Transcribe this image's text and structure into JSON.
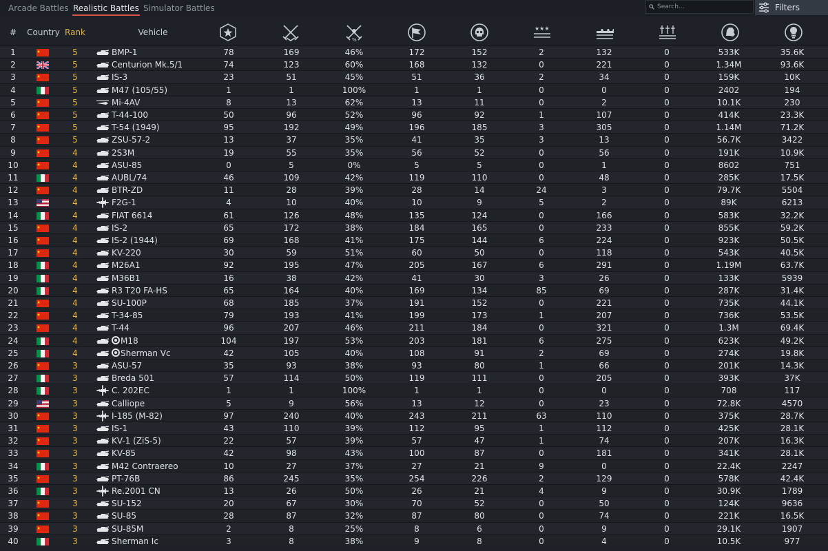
{
  "tabs": [
    {
      "label": "Arcade Battles"
    },
    {
      "label": "Realistic Battles",
      "active": true
    },
    {
      "label": "Simulator Battles"
    }
  ],
  "search": {
    "placeholder": "Search..."
  },
  "filters": {
    "label": "Filters"
  },
  "columns": {
    "num": "#",
    "country": "Country",
    "rank": "Rank",
    "vehicle": "Vehicle",
    "stat_icons": [
      "battles-icon",
      "victories-icon",
      "win-rate-icon",
      "respawns-icon",
      "deaths-icon",
      "air-kills-icon",
      "ground-kills-icon",
      "naval-kills-icon",
      "silver-lions-icon",
      "research-points-icon"
    ]
  },
  "colors": {
    "background": "#1e2228",
    "rank": "#e3b547",
    "active_tab_underline": "#d8564a"
  },
  "rows": [
    {
      "num": "1",
      "flag": "china",
      "rank": "5",
      "type": "tank",
      "name": "BMP-1",
      "stats": [
        "78",
        "169",
        "46%",
        "172",
        "152",
        "2",
        "132",
        "0",
        "533K",
        "35.6K"
      ]
    },
    {
      "num": "2",
      "flag": "uk",
      "rank": "5",
      "type": "tank",
      "name": "Centurion Mk.5/1",
      "stats": [
        "74",
        "123",
        "60%",
        "168",
        "132",
        "0",
        "221",
        "0",
        "1.34M",
        "93.6K"
      ]
    },
    {
      "num": "3",
      "flag": "china",
      "rank": "5",
      "type": "tank",
      "name": "IS-3",
      "stats": [
        "23",
        "51",
        "45%",
        "51",
        "36",
        "2",
        "34",
        "0",
        "159K",
        "10K"
      ]
    },
    {
      "num": "4",
      "flag": "italy",
      "rank": "5",
      "type": "tank",
      "name": "M47 (105/55)",
      "stats": [
        "1",
        "1",
        "100%",
        "1",
        "1",
        "0",
        "0",
        "0",
        "2402",
        "194"
      ]
    },
    {
      "num": "5",
      "flag": "china",
      "rank": "5",
      "type": "heli",
      "name": "Mi-4AV",
      "stats": [
        "8",
        "13",
        "62%",
        "13",
        "11",
        "0",
        "2",
        "0",
        "10.1K",
        "230"
      ]
    },
    {
      "num": "6",
      "flag": "china",
      "rank": "5",
      "type": "tank",
      "name": "T-44-100",
      "stats": [
        "50",
        "96",
        "52%",
        "96",
        "92",
        "1",
        "107",
        "0",
        "414K",
        "23.3K"
      ]
    },
    {
      "num": "7",
      "flag": "china",
      "rank": "5",
      "type": "tank",
      "name": "T-54 (1949)",
      "stats": [
        "95",
        "192",
        "49%",
        "196",
        "185",
        "3",
        "305",
        "0",
        "1.14M",
        "71.2K"
      ]
    },
    {
      "num": "8",
      "flag": "china",
      "rank": "5",
      "type": "tank",
      "name": "ZSU-57-2",
      "stats": [
        "13",
        "37",
        "35%",
        "41",
        "35",
        "3",
        "13",
        "0",
        "56.7K",
        "3422"
      ]
    },
    {
      "num": "9",
      "flag": "china",
      "rank": "4",
      "type": "tank",
      "name": "2S3M",
      "stats": [
        "19",
        "55",
        "35%",
        "56",
        "52",
        "0",
        "56",
        "0",
        "191K",
        "10.9K"
      ]
    },
    {
      "num": "10",
      "flag": "china",
      "rank": "4",
      "type": "tank",
      "name": "ASU-85",
      "stats": [
        "0",
        "5",
        "0%",
        "5",
        "5",
        "0",
        "1",
        "0",
        "8602",
        "751"
      ]
    },
    {
      "num": "11",
      "flag": "italy",
      "rank": "4",
      "type": "tank",
      "name": "AUBL/74",
      "stats": [
        "46",
        "109",
        "42%",
        "119",
        "110",
        "0",
        "48",
        "0",
        "285K",
        "17.5K"
      ]
    },
    {
      "num": "12",
      "flag": "china",
      "rank": "4",
      "type": "tank",
      "name": "BTR-ZD",
      "stats": [
        "11",
        "28",
        "39%",
        "28",
        "14",
        "24",
        "3",
        "0",
        "79.7K",
        "5504"
      ]
    },
    {
      "num": "13",
      "flag": "usa",
      "rank": "4",
      "type": "plane",
      "name": "F2G-1",
      "stats": [
        "4",
        "10",
        "40%",
        "10",
        "9",
        "5",
        "2",
        "0",
        "89K",
        "6213"
      ]
    },
    {
      "num": "14",
      "flag": "italy",
      "rank": "4",
      "type": "tank",
      "name": "FIAT 6614",
      "stats": [
        "61",
        "126",
        "48%",
        "135",
        "124",
        "0",
        "166",
        "0",
        "583K",
        "32.2K"
      ]
    },
    {
      "num": "15",
      "flag": "china",
      "rank": "4",
      "type": "tank",
      "name": "IS-2",
      "stats": [
        "65",
        "172",
        "38%",
        "184",
        "165",
        "0",
        "233",
        "0",
        "855K",
        "59.2K"
      ]
    },
    {
      "num": "16",
      "flag": "china",
      "rank": "4",
      "type": "tank",
      "name": "IS-2 (1944)",
      "stats": [
        "69",
        "168",
        "41%",
        "175",
        "144",
        "6",
        "224",
        "0",
        "923K",
        "50.5K"
      ]
    },
    {
      "num": "17",
      "flag": "china",
      "rank": "4",
      "type": "tank",
      "name": "KV-220",
      "stats": [
        "30",
        "59",
        "51%",
        "60",
        "50",
        "0",
        "118",
        "0",
        "543K",
        "40.5K"
      ]
    },
    {
      "num": "18",
      "flag": "italy",
      "rank": "4",
      "type": "tank",
      "name": "M26A1",
      "stats": [
        "92",
        "195",
        "47%",
        "205",
        "167",
        "6",
        "291",
        "0",
        "1.19M",
        "63.7K"
      ]
    },
    {
      "num": "19",
      "flag": "italy",
      "rank": "4",
      "type": "tank",
      "name": "M36B1",
      "stats": [
        "16",
        "38",
        "42%",
        "41",
        "30",
        "3",
        "26",
        "0",
        "133K",
        "5939"
      ]
    },
    {
      "num": "20",
      "flag": "italy",
      "rank": "4",
      "type": "tank",
      "name": "R3 T20 FA-HS",
      "stats": [
        "65",
        "164",
        "40%",
        "169",
        "134",
        "85",
        "69",
        "0",
        "287K",
        "31.4K"
      ]
    },
    {
      "num": "21",
      "flag": "china",
      "rank": "4",
      "type": "tank",
      "name": "SU-100P",
      "stats": [
        "68",
        "185",
        "37%",
        "191",
        "152",
        "0",
        "221",
        "0",
        "735K",
        "44.1K"
      ]
    },
    {
      "num": "22",
      "flag": "china",
      "rank": "4",
      "type": "tank",
      "name": "T-34-85",
      "stats": [
        "79",
        "193",
        "41%",
        "199",
        "173",
        "1",
        "207",
        "0",
        "736K",
        "53.5K"
      ]
    },
    {
      "num": "23",
      "flag": "china",
      "rank": "4",
      "type": "tank",
      "name": "T-44",
      "stats": [
        "96",
        "207",
        "46%",
        "211",
        "184",
        "0",
        "321",
        "0",
        "1.3M",
        "69.4K"
      ]
    },
    {
      "num": "24",
      "flag": "italy",
      "rank": "4",
      "type": "tank",
      "badge": true,
      "name": "M18",
      "stats": [
        "104",
        "197",
        "53%",
        "203",
        "181",
        "6",
        "275",
        "0",
        "623K",
        "49.2K"
      ]
    },
    {
      "num": "25",
      "flag": "italy",
      "rank": "4",
      "type": "tank",
      "badge": true,
      "name": "Sherman Vc",
      "stats": [
        "42",
        "105",
        "40%",
        "108",
        "91",
        "2",
        "69",
        "0",
        "274K",
        "19.8K"
      ]
    },
    {
      "num": "26",
      "flag": "china",
      "rank": "3",
      "type": "tank",
      "name": "ASU-57",
      "stats": [
        "35",
        "93",
        "38%",
        "93",
        "80",
        "1",
        "66",
        "0",
        "201K",
        "14.3K"
      ]
    },
    {
      "num": "27",
      "flag": "italy",
      "rank": "3",
      "type": "tank",
      "name": "Breda 501",
      "stats": [
        "57",
        "114",
        "50%",
        "119",
        "111",
        "0",
        "205",
        "0",
        "393K",
        "37K"
      ]
    },
    {
      "num": "28",
      "flag": "italy",
      "rank": "3",
      "type": "plane",
      "name": "C. 202EC",
      "stats": [
        "1",
        "1",
        "100%",
        "1",
        "1",
        "0",
        "0",
        "0",
        "708",
        "117"
      ]
    },
    {
      "num": "29",
      "flag": "usa",
      "rank": "3",
      "type": "tank",
      "name": "Calliope",
      "stats": [
        "5",
        "9",
        "56%",
        "13",
        "12",
        "0",
        "23",
        "0",
        "72.8K",
        "4570"
      ]
    },
    {
      "num": "30",
      "flag": "china",
      "rank": "3",
      "type": "plane",
      "name": "I-185 (M-82)",
      "stats": [
        "97",
        "240",
        "40%",
        "243",
        "211",
        "63",
        "110",
        "0",
        "375K",
        "28.7K"
      ]
    },
    {
      "num": "31",
      "flag": "china",
      "rank": "3",
      "type": "tank",
      "name": "IS-1",
      "stats": [
        "43",
        "110",
        "39%",
        "112",
        "95",
        "1",
        "112",
        "0",
        "425K",
        "28.1K"
      ]
    },
    {
      "num": "32",
      "flag": "china",
      "rank": "3",
      "type": "tank",
      "name": "KV-1 (ZiS-5)",
      "stats": [
        "22",
        "57",
        "39%",
        "57",
        "47",
        "1",
        "74",
        "0",
        "207K",
        "16.3K"
      ]
    },
    {
      "num": "33",
      "flag": "china",
      "rank": "3",
      "type": "tank",
      "name": "KV-85",
      "stats": [
        "42",
        "98",
        "43%",
        "100",
        "87",
        "0",
        "181",
        "0",
        "341K",
        "28.1K"
      ]
    },
    {
      "num": "34",
      "flag": "italy",
      "rank": "3",
      "type": "tank",
      "name": "M42 Contraereo",
      "stats": [
        "10",
        "27",
        "37%",
        "27",
        "21",
        "9",
        "0",
        "0",
        "22.4K",
        "2247"
      ]
    },
    {
      "num": "35",
      "flag": "china",
      "rank": "3",
      "type": "tank",
      "name": "PT-76B",
      "stats": [
        "86",
        "245",
        "35%",
        "254",
        "226",
        "2",
        "129",
        "0",
        "578K",
        "42.4K"
      ]
    },
    {
      "num": "36",
      "flag": "italy",
      "rank": "3",
      "type": "plane",
      "name": "Re.2001 CN",
      "stats": [
        "13",
        "26",
        "50%",
        "26",
        "21",
        "4",
        "9",
        "0",
        "30.9K",
        "1789"
      ]
    },
    {
      "num": "37",
      "flag": "china",
      "rank": "3",
      "type": "tank",
      "name": "SU-152",
      "stats": [
        "20",
        "67",
        "30%",
        "70",
        "52",
        "0",
        "50",
        "0",
        "124K",
        "9636"
      ]
    },
    {
      "num": "38",
      "flag": "china",
      "rank": "3",
      "type": "tank",
      "name": "SU-85",
      "stats": [
        "28",
        "87",
        "32%",
        "87",
        "80",
        "0",
        "74",
        "0",
        "221K",
        "16.5K"
      ]
    },
    {
      "num": "39",
      "flag": "china",
      "rank": "3",
      "type": "tank",
      "name": "SU-85M",
      "stats": [
        "2",
        "8",
        "25%",
        "8",
        "6",
        "0",
        "9",
        "0",
        "29.1K",
        "1907"
      ]
    },
    {
      "num": "40",
      "flag": "italy",
      "rank": "3",
      "type": "tank",
      "name": "Sherman Ic",
      "stats": [
        "3",
        "8",
        "38%",
        "9",
        "8",
        "0",
        "4",
        "0",
        "10.5K",
        "977"
      ]
    }
  ]
}
